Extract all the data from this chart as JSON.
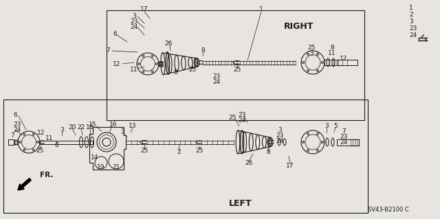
{
  "bg_color": "#e8e5e0",
  "line_color": "#1a1a1a",
  "text_color": "#1a1a1a",
  "right_label": "RIGHT",
  "left_label": "LEFT",
  "fr_label": "FR.",
  "part_code": "SV43-B2100 C"
}
